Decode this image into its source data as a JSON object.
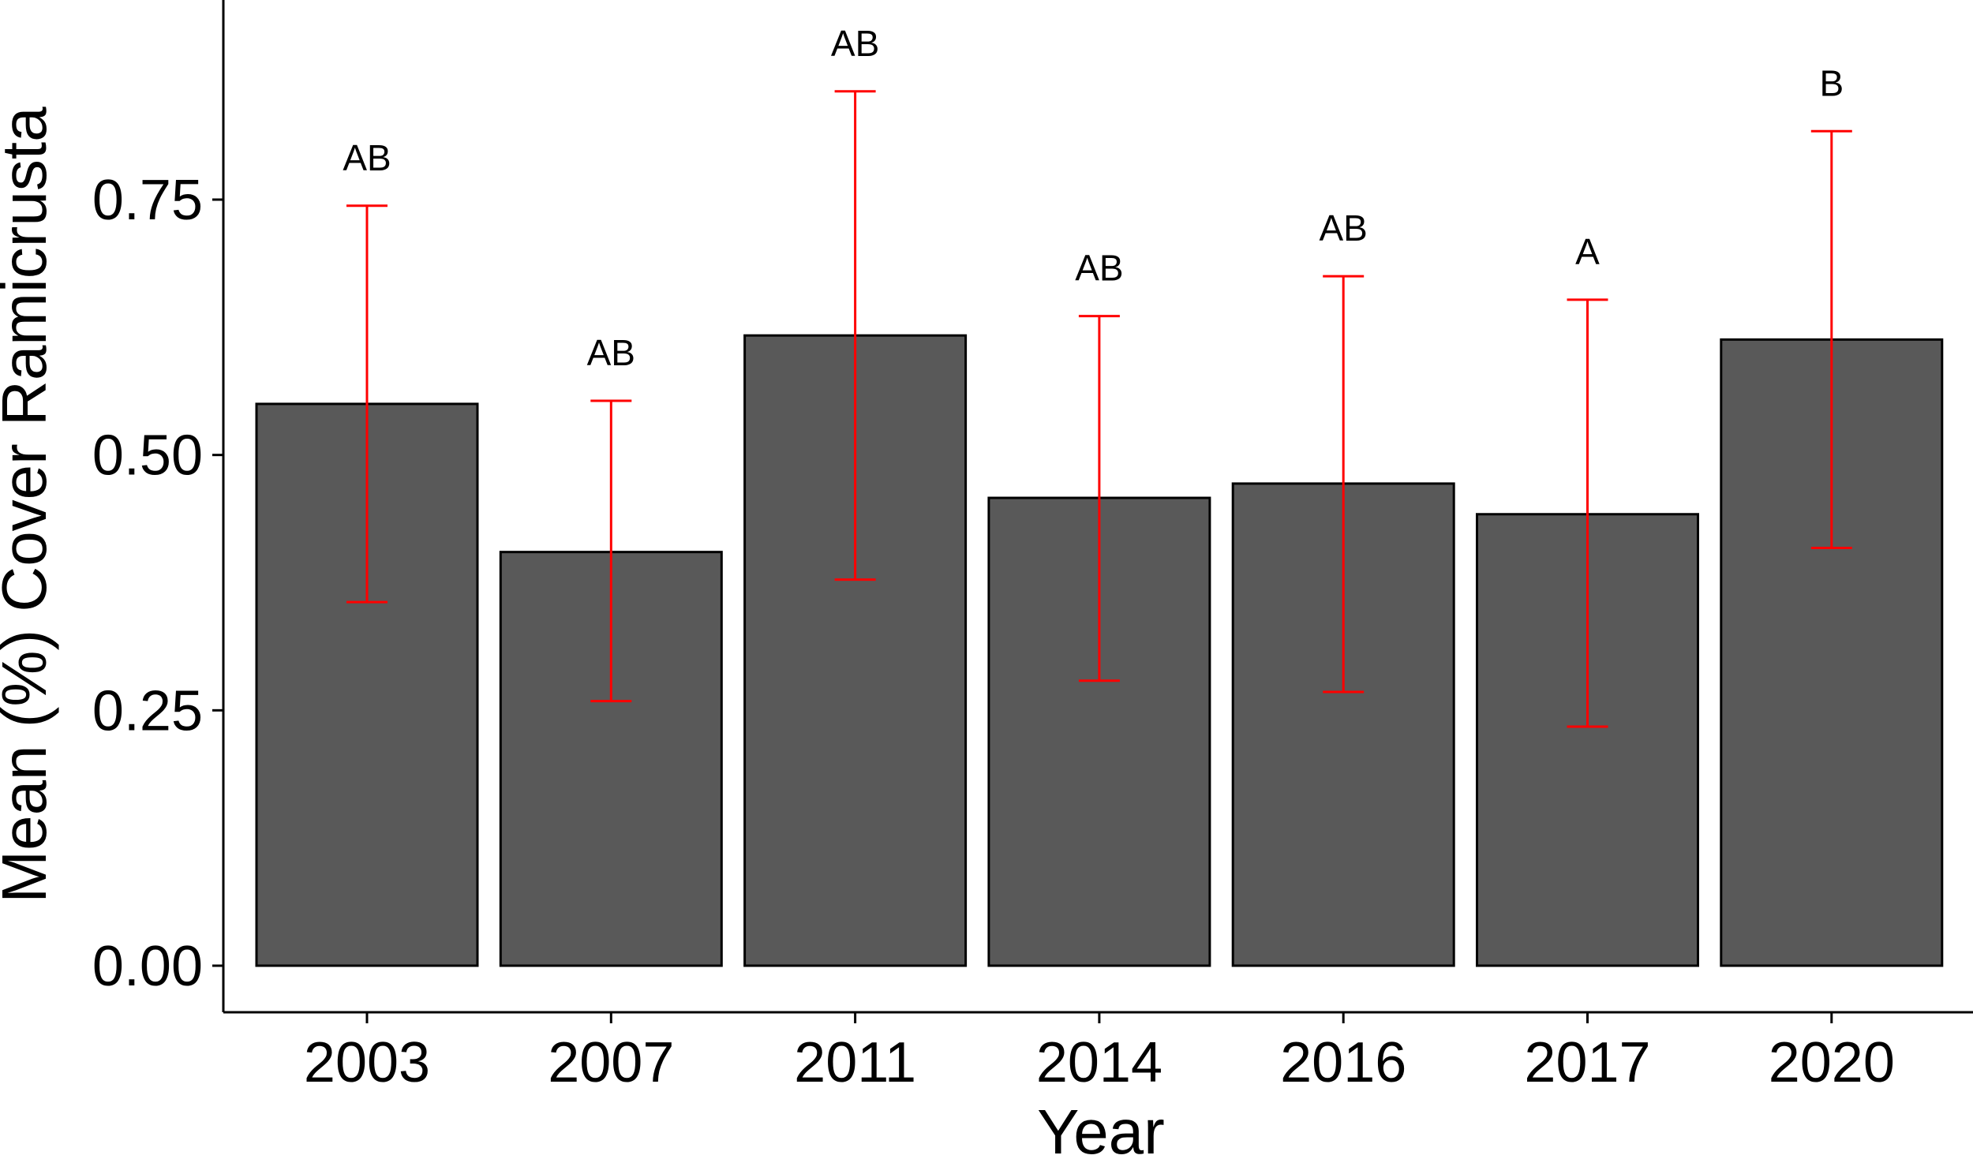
{
  "chart_data": {
    "type": "bar",
    "title": "",
    "xlabel": "Year",
    "ylabel": "Mean (%) Cover Ramicrusta",
    "categories": [
      "2003",
      "2007",
      "2011",
      "2014",
      "2016",
      "2017",
      "2020"
    ],
    "values": [
      0.55,
      0.405,
      0.617,
      0.458,
      0.472,
      0.442,
      0.613
    ],
    "error_low": [
      0.356,
      0.259,
      0.378,
      0.279,
      0.268,
      0.234,
      0.409
    ],
    "error_high": [
      0.744,
      0.553,
      0.856,
      0.636,
      0.675,
      0.652,
      0.817
    ],
    "significance_labels": [
      "AB",
      "AB",
      "AB",
      "AB",
      "AB",
      "A",
      "B"
    ],
    "ylim": [
      0,
      0.95
    ],
    "yticks": [
      0.0,
      0.25,
      0.5,
      0.75
    ],
    "ytick_labels": [
      "0.00",
      "0.25",
      "0.50",
      "0.75"
    ],
    "grid": false,
    "colors": {
      "bar_fill": "#595959",
      "bar_stroke": "#000000",
      "error_bar": "#ff0000"
    }
  }
}
